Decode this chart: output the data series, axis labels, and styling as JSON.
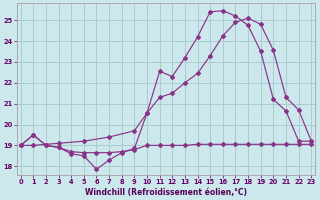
{
  "bg_color": "#cce8ec",
  "grid_color": "#aacccc",
  "line_color": "#883388",
  "xlabel": "Windchill (Refroidissement éolien,°C)",
  "xlim": [
    -0.3,
    23.3
  ],
  "ylim": [
    17.6,
    25.8
  ],
  "yticks": [
    18,
    19,
    20,
    21,
    22,
    23,
    24,
    25
  ],
  "xticks": [
    0,
    1,
    2,
    3,
    4,
    5,
    6,
    7,
    8,
    9,
    10,
    11,
    12,
    13,
    14,
    15,
    16,
    17,
    18,
    19,
    20,
    21,
    22,
    23
  ],
  "series1_x": [
    0,
    1,
    2,
    3,
    4,
    5,
    6,
    7,
    8,
    9,
    10,
    11,
    12,
    13,
    14,
    15,
    16,
    17,
    18,
    19,
    20,
    21,
    22,
    23
  ],
  "series1_y": [
    19.0,
    19.5,
    19.0,
    18.9,
    18.7,
    18.65,
    18.65,
    18.65,
    18.7,
    18.8,
    19.0,
    19.0,
    19.0,
    19.0,
    19.05,
    19.05,
    19.05,
    19.05,
    19.05,
    19.05,
    19.05,
    19.05,
    19.05,
    19.05
  ],
  "series2_x": [
    0,
    1,
    2,
    3,
    4,
    5,
    6,
    7,
    8,
    9,
    10,
    11,
    12,
    13,
    14,
    15,
    16,
    17,
    18,
    19,
    20,
    21,
    22,
    23
  ],
  "series2_y": [
    19.0,
    19.5,
    19.0,
    18.9,
    18.6,
    18.5,
    17.85,
    18.3,
    18.65,
    18.85,
    20.55,
    22.55,
    22.3,
    23.2,
    24.2,
    25.4,
    25.45,
    25.2,
    24.75,
    23.5,
    21.2,
    20.65,
    19.2,
    19.2
  ],
  "series3_x": [
    0,
    1,
    3,
    5,
    7,
    9,
    10,
    11,
    12,
    13,
    14,
    15,
    16,
    17,
    18,
    19,
    20,
    21,
    22,
    23
  ],
  "series3_y": [
    19.0,
    19.0,
    19.1,
    19.2,
    19.4,
    19.7,
    20.55,
    21.3,
    21.5,
    22.0,
    22.45,
    23.3,
    24.25,
    24.9,
    25.1,
    24.8,
    23.55,
    21.3,
    20.7,
    19.2
  ]
}
